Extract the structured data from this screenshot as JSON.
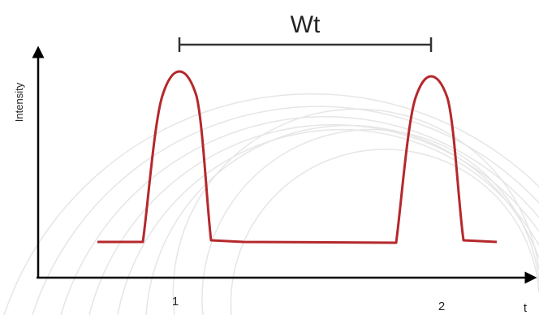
{
  "diagram": {
    "width_label": "Wt",
    "y_axis_label": "Intensity",
    "x_axis_label": "t",
    "peaks": [
      {
        "label": "1"
      },
      {
        "label": "2"
      }
    ],
    "colors": {
      "signal": "#b5282c",
      "axes": "#000000",
      "span_bar": "#333333",
      "background_arcs": "#e6e6e6"
    }
  }
}
